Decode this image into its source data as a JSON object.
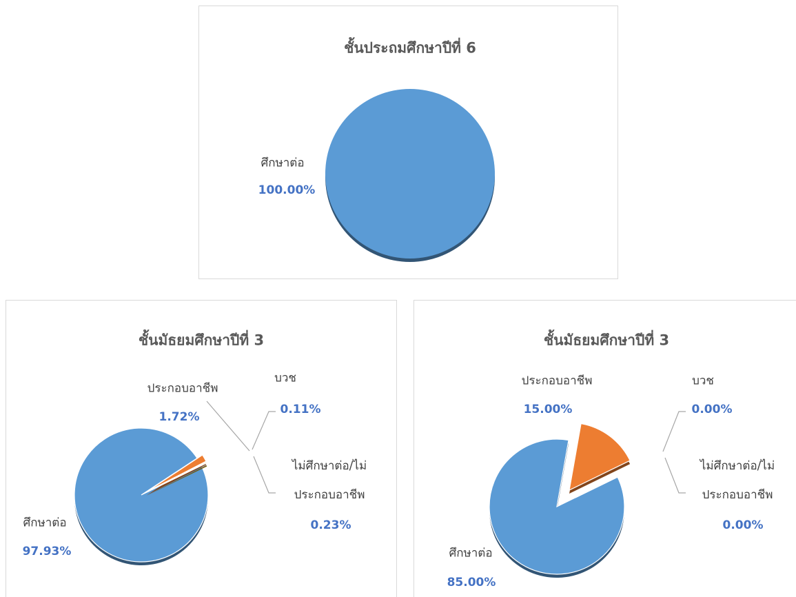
{
  "chart_data": [
    {
      "type": "pie",
      "title": "ชั้นประถมศึกษาปีที่ 6",
      "categories": [
        "ศึกษาต่อ"
      ],
      "values": [
        100
      ],
      "value_labels": [
        "100.00%"
      ],
      "colors": [
        "#5b9bd5"
      ]
    },
    {
      "type": "pie",
      "title": "ชั้นมัธยมศึกษาปีที่ 3",
      "categories": [
        "ศึกษาต่อ",
        "ประกอบอาชีพ",
        "บวช",
        "ไม่ศึกษาต่อ/ไม่ประกอบอาชีพ"
      ],
      "values": [
        97.93,
        1.72,
        0.11,
        0.23
      ],
      "value_labels": [
        "97.93%",
        "1.72%",
        "0.11%",
        "0.23%"
      ],
      "colors": [
        "#5b9bd5",
        "#ed7d31",
        "#a5a5a5",
        "#d9a300"
      ]
    },
    {
      "type": "pie",
      "title": "ชั้นมัธยมศึกษาปีที่ 3",
      "categories": [
        "ศึกษาต่อ",
        "ประกอบอาชีพ",
        "บวช",
        "ไม่ศึกษาต่อ/ไม่ประกอบอาชีพ"
      ],
      "values": [
        85,
        15,
        0,
        0
      ],
      "value_labels": [
        "85.00%",
        "15.00%",
        "0.00%",
        "0.00%"
      ],
      "colors": [
        "#5b9bd5",
        "#ed7d31",
        "#a5a5a5",
        "#d9a300"
      ]
    }
  ]
}
